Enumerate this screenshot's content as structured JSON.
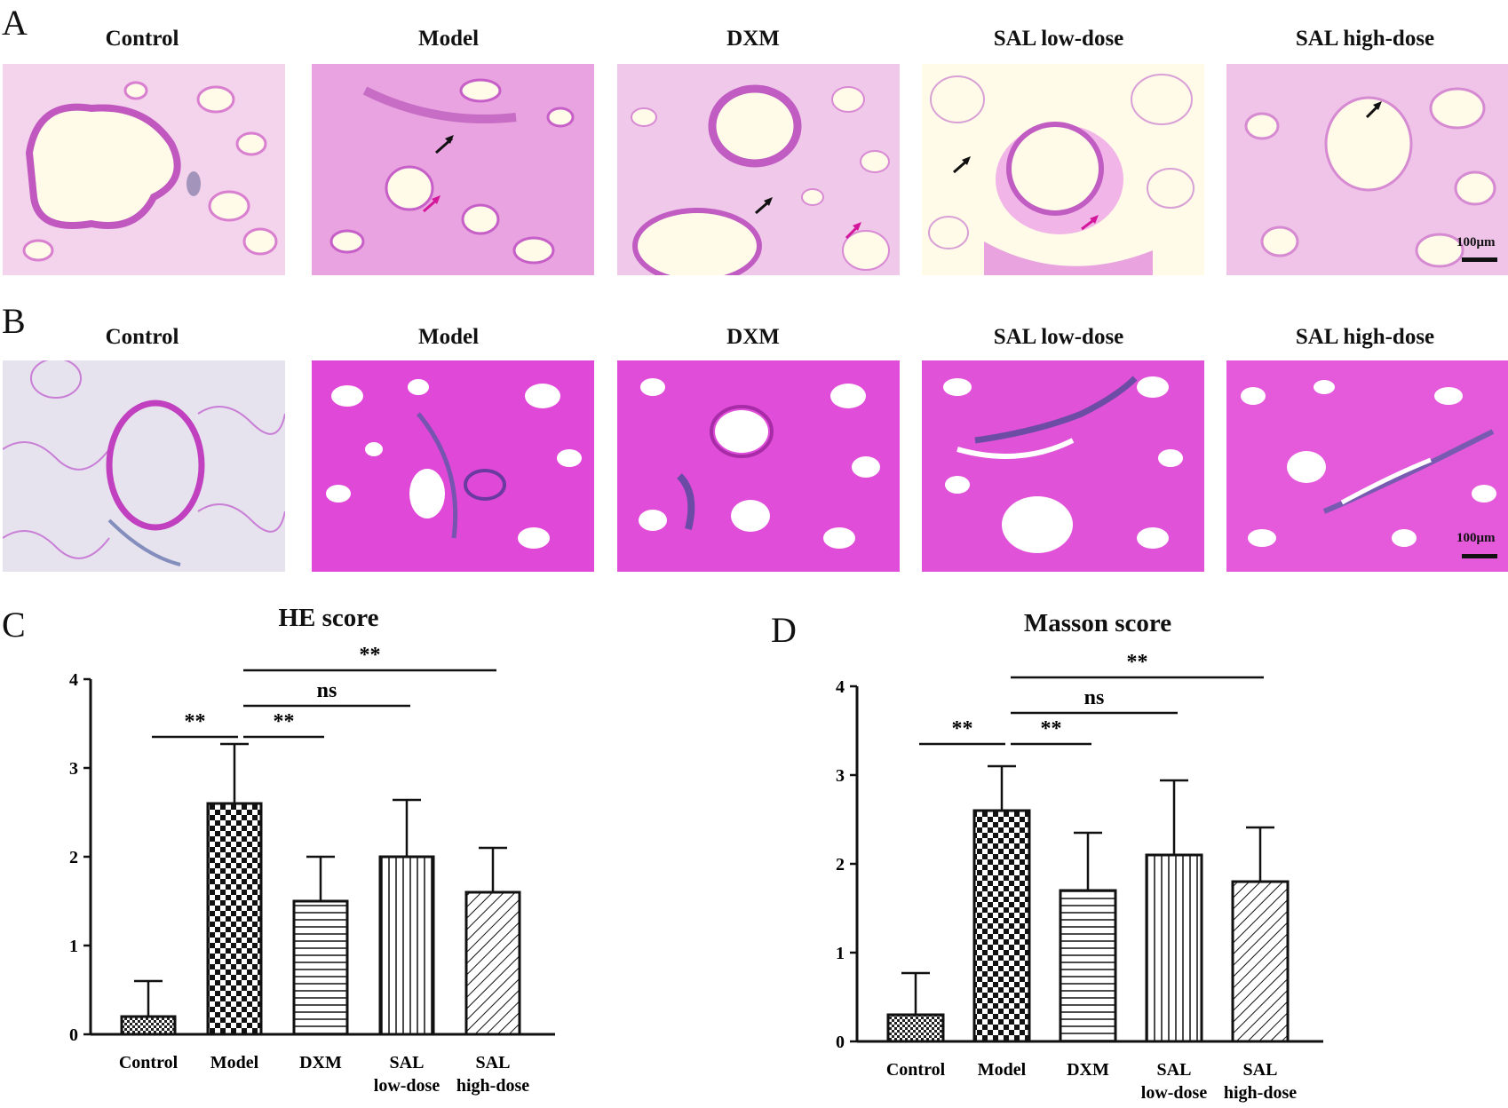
{
  "panels": {
    "a": {
      "letter": "A",
      "titles": [
        "Control",
        "Model",
        "DXM",
        "SAL low-dose",
        "SAL high-dose"
      ],
      "scale": "100μm"
    },
    "b": {
      "letter": "B",
      "titles": [
        "Control",
        "Model",
        "DXM",
        "SAL low-dose",
        "SAL high-dose"
      ],
      "scale": "100μm"
    },
    "c": {
      "letter": "C"
    },
    "d": {
      "letter": "D"
    }
  },
  "colors": {
    "stain_pink": "#e67ad8",
    "stain_bg": "#f2cde9",
    "masson_blue": "#4a5aa0",
    "arrow_black": "#111111",
    "arrow_magenta": "#d4179a"
  },
  "chart_data": [
    {
      "type": "bar",
      "title": "HE score",
      "categories": [
        "Control",
        "Model",
        "DXM",
        "SAL\nlow-dose",
        "SAL\nhigh-dose"
      ],
      "values": [
        0.2,
        2.6,
        1.5,
        2.0,
        1.6
      ],
      "errors": [
        0.4,
        0.67,
        0.5,
        0.64,
        0.5
      ],
      "ylim": [
        0,
        4
      ],
      "yticks": [
        0,
        1,
        2,
        3,
        4
      ],
      "patterns": [
        "fine-check",
        "check",
        "horizontal",
        "vertical",
        "diagonal"
      ],
      "comparisons": [
        {
          "from": 0,
          "to": 1,
          "label": "**",
          "y": 3.35
        },
        {
          "from": 1,
          "to": 2,
          "label": "**",
          "y": 3.35
        },
        {
          "from": 1,
          "to": 3,
          "label": "ns",
          "y": 3.7
        },
        {
          "from": 1,
          "to": 4,
          "label": "**",
          "y": 4.1
        }
      ]
    },
    {
      "type": "bar",
      "title": "Masson score",
      "categories": [
        "Control",
        "Model",
        "DXM",
        "SAL\nlow-dose",
        "SAL\nhigh-dose"
      ],
      "values": [
        0.3,
        2.6,
        1.7,
        2.1,
        1.8
      ],
      "errors": [
        0.47,
        0.5,
        0.65,
        0.84,
        0.61
      ],
      "ylim": [
        0,
        4
      ],
      "yticks": [
        0,
        1,
        2,
        3,
        4
      ],
      "patterns": [
        "fine-check",
        "check",
        "horizontal",
        "vertical",
        "diagonal"
      ],
      "comparisons": [
        {
          "from": 0,
          "to": 1,
          "label": "**",
          "y": 3.35
        },
        {
          "from": 1,
          "to": 2,
          "label": "**",
          "y": 3.35
        },
        {
          "from": 1,
          "to": 3,
          "label": "ns",
          "y": 3.7
        },
        {
          "from": 1,
          "to": 4,
          "label": "**",
          "y": 4.1
        }
      ]
    }
  ]
}
